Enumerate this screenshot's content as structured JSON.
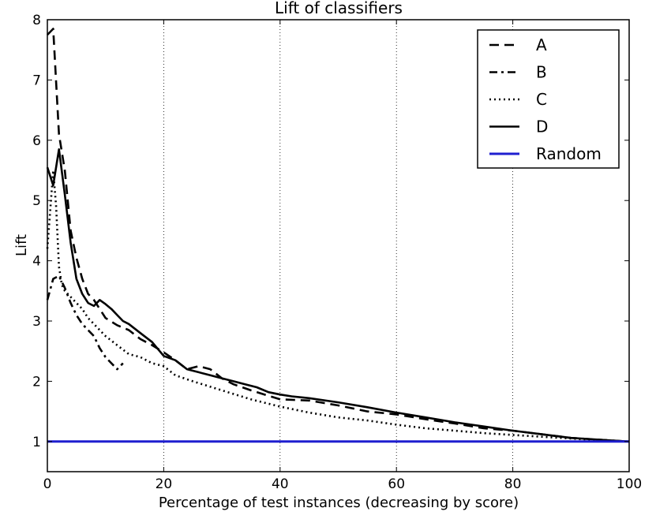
{
  "chart_data": {
    "type": "line",
    "title": "Lift of classifiers",
    "xlabel": "Percentage of test instances (decreasing by score)",
    "ylabel": "Lift",
    "xlim": [
      0,
      100
    ],
    "ylim": [
      0.5,
      8
    ],
    "xticks": [
      0,
      20,
      40,
      60,
      80,
      100
    ],
    "yticks": [
      1,
      2,
      3,
      4,
      5,
      6,
      7,
      8
    ],
    "grid": "vertical dotted lines at x ticks",
    "legend_position": "top-right",
    "series": [
      {
        "name": "A",
        "style": "dashed",
        "color": "#000000",
        "x": [
          0,
          1,
          2,
          3,
          4,
          5,
          6,
          7,
          8,
          9,
          10,
          12,
          14,
          16,
          18,
          20,
          22,
          24,
          26,
          28,
          30,
          32,
          35,
          40,
          45,
          50,
          55,
          60,
          65,
          70,
          75,
          80,
          85,
          90,
          95,
          100
        ],
        "y": [
          7.75,
          7.85,
          6.1,
          5.5,
          4.5,
          4.05,
          3.7,
          3.45,
          3.35,
          3.2,
          3.05,
          2.93,
          2.85,
          2.7,
          2.6,
          2.48,
          2.35,
          2.2,
          2.25,
          2.2,
          2.05,
          1.95,
          1.85,
          1.7,
          1.68,
          1.6,
          1.5,
          1.45,
          1.37,
          1.3,
          1.22,
          1.18,
          1.12,
          1.06,
          1.03,
          1.0
        ]
      },
      {
        "name": "B",
        "style": "dashdot",
        "color": "#000000",
        "x": [
          0,
          1,
          2,
          3,
          4,
          5,
          6,
          7,
          8,
          9,
          10,
          11,
          12,
          13
        ],
        "y": [
          3.35,
          3.7,
          3.75,
          3.55,
          3.3,
          3.1,
          2.95,
          2.85,
          2.75,
          2.55,
          2.4,
          2.3,
          2.2,
          2.3
        ]
      },
      {
        "name": "C",
        "style": "dotted",
        "color": "#000000",
        "x": [
          0,
          1,
          1.5,
          2,
          2.5,
          3,
          4,
          5,
          6,
          7,
          8,
          9,
          10,
          12,
          14,
          16,
          18,
          20,
          22,
          25,
          30,
          35,
          40,
          45,
          50,
          55,
          60,
          65,
          70,
          75,
          80,
          85,
          90,
          95,
          100
        ],
        "y": [
          4.2,
          5.5,
          4.9,
          3.9,
          3.6,
          3.5,
          3.4,
          3.3,
          3.2,
          3.05,
          2.95,
          2.85,
          2.75,
          2.6,
          2.45,
          2.4,
          2.3,
          2.25,
          2.1,
          2.0,
          1.85,
          1.7,
          1.58,
          1.48,
          1.4,
          1.35,
          1.28,
          1.22,
          1.18,
          1.14,
          1.11,
          1.08,
          1.05,
          1.02,
          1.0
        ]
      },
      {
        "name": "D",
        "style": "solid",
        "color": "#000000",
        "x": [
          0,
          1,
          2,
          3,
          4,
          5,
          6,
          7,
          8,
          9,
          10,
          11,
          12,
          13,
          14,
          16,
          18,
          20,
          22,
          24,
          26,
          28,
          30,
          32,
          34,
          36,
          38,
          40,
          42,
          45,
          50,
          55,
          60,
          65,
          70,
          75,
          80,
          85,
          90,
          95,
          100
        ],
        "y": [
          5.55,
          5.25,
          5.85,
          5.1,
          4.3,
          3.7,
          3.45,
          3.3,
          3.25,
          3.35,
          3.28,
          3.2,
          3.1,
          3.0,
          2.95,
          2.8,
          2.65,
          2.42,
          2.35,
          2.2,
          2.15,
          2.1,
          2.05,
          2.0,
          1.95,
          1.9,
          1.82,
          1.78,
          1.75,
          1.72,
          1.65,
          1.57,
          1.48,
          1.4,
          1.32,
          1.25,
          1.18,
          1.12,
          1.06,
          1.03,
          1.0
        ]
      },
      {
        "name": "Random",
        "style": "solid",
        "color": "#1f1fd0",
        "x": [
          0,
          100
        ],
        "y": [
          1,
          1
        ]
      }
    ]
  }
}
